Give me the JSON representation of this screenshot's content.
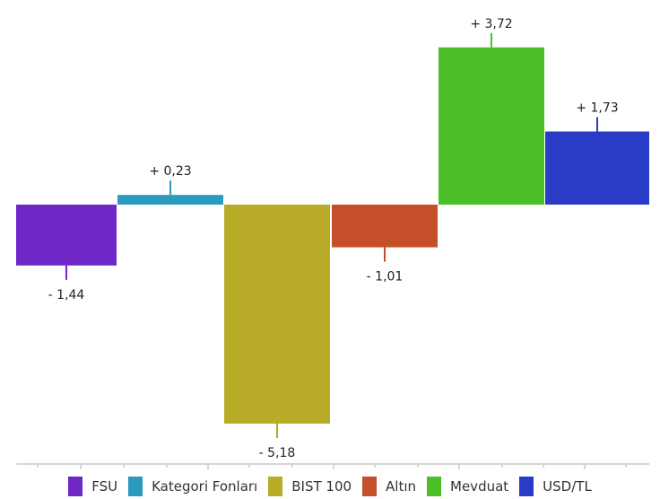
{
  "chart_data": {
    "type": "bar",
    "categories": [
      "FSU",
      "Kategori Fonları",
      "BIST 100",
      "Altın",
      "Mevduat",
      "USD/TL"
    ],
    "values": [
      -1.44,
      0.23,
      -5.18,
      -1.01,
      3.72,
      1.73
    ],
    "value_labels": [
      "- 1,44",
      "+ 0,23",
      "- 5,18",
      "- 1,01",
      "+ 3,72",
      "+ 1,73"
    ],
    "colors": [
      "#6f27c6",
      "#2a9abf",
      "#b8ab27",
      "#c54f28",
      "#4cbf28",
      "#2a3bc5"
    ],
    "title": "",
    "xlabel": "",
    "ylabel": "",
    "legend_position": "bottom",
    "grid": false
  }
}
